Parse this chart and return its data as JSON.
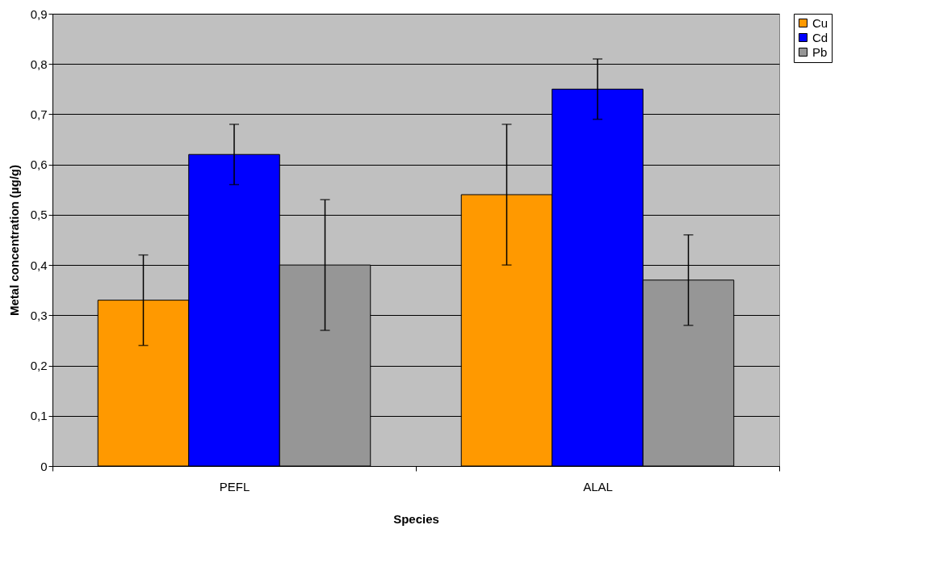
{
  "chart_data": {
    "type": "bar",
    "xlabel": "Species",
    "ylabel": "Metal concentration (µg/g)",
    "categories": [
      "PEFL",
      "ALAL"
    ],
    "series": [
      {
        "name": "Cu",
        "color": "#ff9900",
        "values": [
          0.33,
          0.54
        ],
        "errors": [
          0.09,
          0.14
        ]
      },
      {
        "name": "Cd",
        "color": "#0000ff",
        "values": [
          0.62,
          0.75
        ],
        "errors": [
          0.06,
          0.06
        ]
      },
      {
        "name": "Pb",
        "color": "#969696",
        "values": [
          0.4,
          0.37
        ],
        "errors": [
          0.13,
          0.09
        ]
      }
    ],
    "ylim": [
      0,
      0.9
    ],
    "yticks": [
      {
        "value": 0,
        "label": "0"
      },
      {
        "value": 0.1,
        "label": "0,1"
      },
      {
        "value": 0.2,
        "label": "0,2"
      },
      {
        "value": 0.3,
        "label": "0,3"
      },
      {
        "value": 0.4,
        "label": "0,4"
      },
      {
        "value": 0.5,
        "label": "0,5"
      },
      {
        "value": 0.6,
        "label": "0,6"
      },
      {
        "value": 0.7,
        "label": "0,7"
      },
      {
        "value": 0.8,
        "label": "0,8"
      },
      {
        "value": 0.9,
        "label": "0,9"
      }
    ],
    "grid": "y",
    "legend": "right"
  }
}
